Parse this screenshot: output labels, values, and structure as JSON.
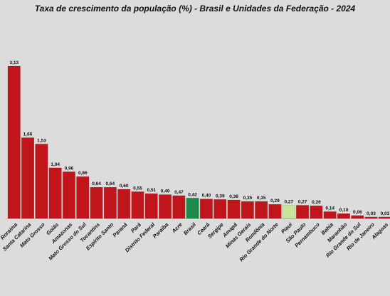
{
  "chart_data": {
    "type": "bar",
    "title": "Taxa de crescimento da população (%) - Brasil e Unidades da Federação - 2024",
    "xlabel": "",
    "ylabel": "",
    "ylim": [
      0,
      3.13
    ],
    "grid": false,
    "legend": "none",
    "categories": [
      "Roraima",
      "Santa Catarina",
      "Mato Grosso",
      "Goiás",
      "Amazonas",
      "Mato Grosso do Sul",
      "Tocantins",
      "Espírito Santo",
      "Paraná",
      "Pará",
      "Distrito Federal",
      "Paraíba",
      "Acre",
      "Brasil",
      "Ceará",
      "Sergipe",
      "Amapá",
      "Minas Gerais",
      "Rondônia",
      "Rio Grande do Norte",
      "Piauí",
      "São Paulo",
      "Pernambuco",
      "Bahia",
      "Maranhão",
      "Rio Grande do Sul",
      "Rio de Janeiro",
      "Alagoas"
    ],
    "values": [
      3.13,
      1.66,
      1.53,
      1.04,
      0.96,
      0.86,
      0.64,
      0.64,
      0.6,
      0.55,
      0.51,
      0.49,
      0.47,
      0.42,
      0.4,
      0.39,
      0.38,
      0.35,
      0.35,
      0.29,
      0.27,
      0.27,
      0.26,
      0.14,
      0.1,
      0.06,
      0.03,
      0.03
    ],
    "value_labels": [
      "3,13",
      "1,66",
      "1,53",
      "1,04",
      "0,96",
      "0,86",
      "0,64",
      "0,64",
      "0,60",
      "0,55",
      "0,51",
      "0,49",
      "0,47",
      "0,42",
      "0,40",
      "0,39",
      "0,38",
      "0,35",
      "0,35",
      "0,29",
      "0,27",
      "0,27",
      "0,26",
      "0,14",
      "0,10",
      "0,06",
      "0,03",
      "0,03"
    ],
    "colors": {
      "default": "#c0151b",
      "Brasil": "#1f8a4c",
      "Piauí": "#c6e59a"
    }
  }
}
